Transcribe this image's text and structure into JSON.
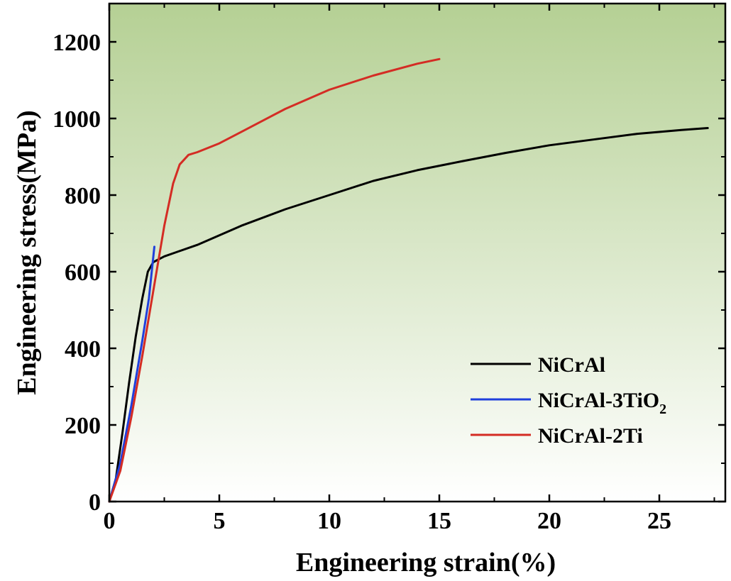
{
  "chart_data": {
    "type": "line",
    "xlabel": "Engineering strain(%)",
    "ylabel": "Engineering stress(MPa)",
    "xlim": [
      0,
      28
    ],
    "ylim": [
      0,
      1300
    ],
    "x_ticks": [
      0,
      5,
      10,
      15,
      20,
      25
    ],
    "y_ticks": [
      0,
      200,
      400,
      600,
      800,
      1000,
      1200
    ],
    "x_tick_labels": [
      "0",
      "5",
      "10",
      "15",
      "20",
      "25"
    ],
    "y_tick_labels": [
      "0",
      "200",
      "400",
      "600",
      "800",
      "1000",
      "1200"
    ],
    "grid": false,
    "background_gradient": [
      "#b5d094",
      "#ffffff"
    ],
    "legend": {
      "placement": "bottom-right",
      "entries": [
        {
          "series": 0,
          "label": "NiCrAl",
          "sub": ""
        },
        {
          "series": 1,
          "label": "NiCrAl-3TiO",
          "sub": "2"
        },
        {
          "series": 2,
          "label": "NiCrAl-2Ti",
          "sub": ""
        }
      ]
    },
    "series": [
      {
        "name": "NiCrAl",
        "color": "#000000",
        "points": [
          [
            0,
            0
          ],
          [
            0.3,
            60
          ],
          [
            0.6,
            180
          ],
          [
            0.9,
            310
          ],
          [
            1.2,
            430
          ],
          [
            1.5,
            530
          ],
          [
            1.75,
            600
          ],
          [
            2.0,
            625
          ],
          [
            2.5,
            640
          ],
          [
            3.0,
            650
          ],
          [
            4.0,
            670
          ],
          [
            5.0,
            695
          ],
          [
            6.0,
            720
          ],
          [
            8.0,
            763
          ],
          [
            10.0,
            800
          ],
          [
            12.0,
            837
          ],
          [
            14.0,
            865
          ],
          [
            16.0,
            888
          ],
          [
            18.0,
            910
          ],
          [
            20.0,
            930
          ],
          [
            22.0,
            945
          ],
          [
            24.0,
            960
          ],
          [
            26.0,
            970
          ],
          [
            27.2,
            975
          ]
        ]
      },
      {
        "name": "NiCrAl-3TiO2",
        "color": "#1f3fdc",
        "points": [
          [
            0,
            0
          ],
          [
            0.5,
            100
          ],
          [
            1.0,
            250
          ],
          [
            1.5,
            420
          ],
          [
            1.8,
            530
          ],
          [
            2.05,
            665
          ]
        ]
      },
      {
        "name": "NiCrAl-2Ti",
        "color": "#d42c24",
        "points": [
          [
            0,
            0
          ],
          [
            0.5,
            80
          ],
          [
            1.0,
            220
          ],
          [
            1.5,
            380
          ],
          [
            2.0,
            550
          ],
          [
            2.5,
            720
          ],
          [
            2.9,
            830
          ],
          [
            3.2,
            880
          ],
          [
            3.6,
            905
          ],
          [
            4.0,
            912
          ],
          [
            5.0,
            935
          ],
          [
            6.0,
            965
          ],
          [
            8.0,
            1025
          ],
          [
            10.0,
            1075
          ],
          [
            12.0,
            1112
          ],
          [
            14.0,
            1143
          ],
          [
            15.0,
            1155
          ]
        ]
      }
    ]
  }
}
